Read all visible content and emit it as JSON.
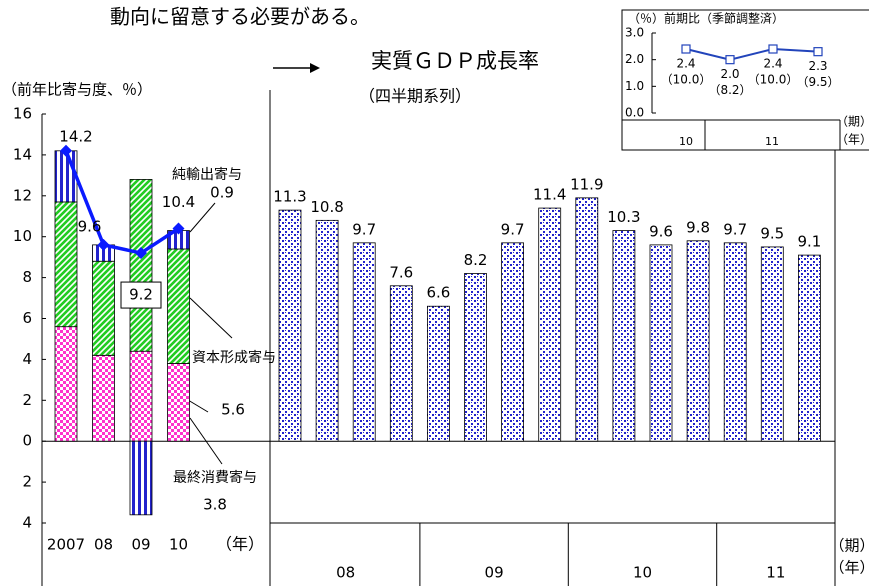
{
  "top_text": "動向に留意する必要がある。",
  "chart_data": [
    {
      "type": "combo",
      "title": "実質ＧＤＰ成長率",
      "subtitle": "（四半期系列）",
      "ylabel": "（前年比寄与度、％）",
      "ylim": [
        -4,
        16
      ],
      "yticks": [
        {
          "value": -4,
          "label": "4"
        },
        {
          "value": -2,
          "label": "2"
        },
        0,
        2,
        4,
        6,
        8,
        10,
        12,
        14,
        16
      ],
      "annual": {
        "categories": [
          "2007",
          "08",
          "09",
          "10"
        ],
        "unit": "（年）",
        "series": [
          {
            "name": "最終消費寄与",
            "color": "#ff33cc",
            "values": [
              5.6,
              4.2,
              4.4,
              3.8
            ]
          },
          {
            "name": "資本形成寄与",
            "color": "#22cc22",
            "values": [
              6.1,
              4.6,
              8.4,
              5.6
            ]
          },
          {
            "name": "純輸出寄与",
            "color": "#2222cc",
            "values": [
              2.5,
              0.8,
              -3.6,
              0.9
            ]
          }
        ],
        "total": {
          "values": [
            14.2,
            9.6,
            9.2,
            10.4
          ],
          "color": "#0a1aff"
        }
      },
      "quarterly": {
        "years": [
          "08",
          "09",
          "10",
          "11"
        ],
        "values": [
          11.3,
          10.8,
          9.7,
          7.6,
          6.6,
          8.2,
          9.7,
          11.4,
          11.9,
          10.3,
          9.6,
          9.8,
          9.7,
          9.5,
          9.1
        ],
        "color": "#2222cc",
        "unit_period": "（期）",
        "unit_year": "（年）"
      }
    },
    {
      "type": "line",
      "title": "（％）前期比（季節調整済）",
      "ylim": [
        0,
        3
      ],
      "yticks": [
        {
          "value": 0,
          "label": "0.0"
        },
        {
          "value": 1,
          "label": "1.0"
        },
        {
          "value": 2,
          "label": "2.0"
        },
        {
          "value": 3,
          "label": "3.0"
        }
      ],
      "values": [
        2.4,
        2.0,
        2.4,
        2.3
      ],
      "value_labels": [
        "2.4",
        "2.0",
        "2.4",
        "2.3"
      ],
      "yoy_labels": [
        "（10.0）",
        "（8.2）",
        "（10.0）",
        "（9.5）"
      ],
      "color": "#2244bb",
      "years": [
        "10",
        "11"
      ],
      "unit_period": "（期）",
      "unit_year": "（年）"
    }
  ]
}
